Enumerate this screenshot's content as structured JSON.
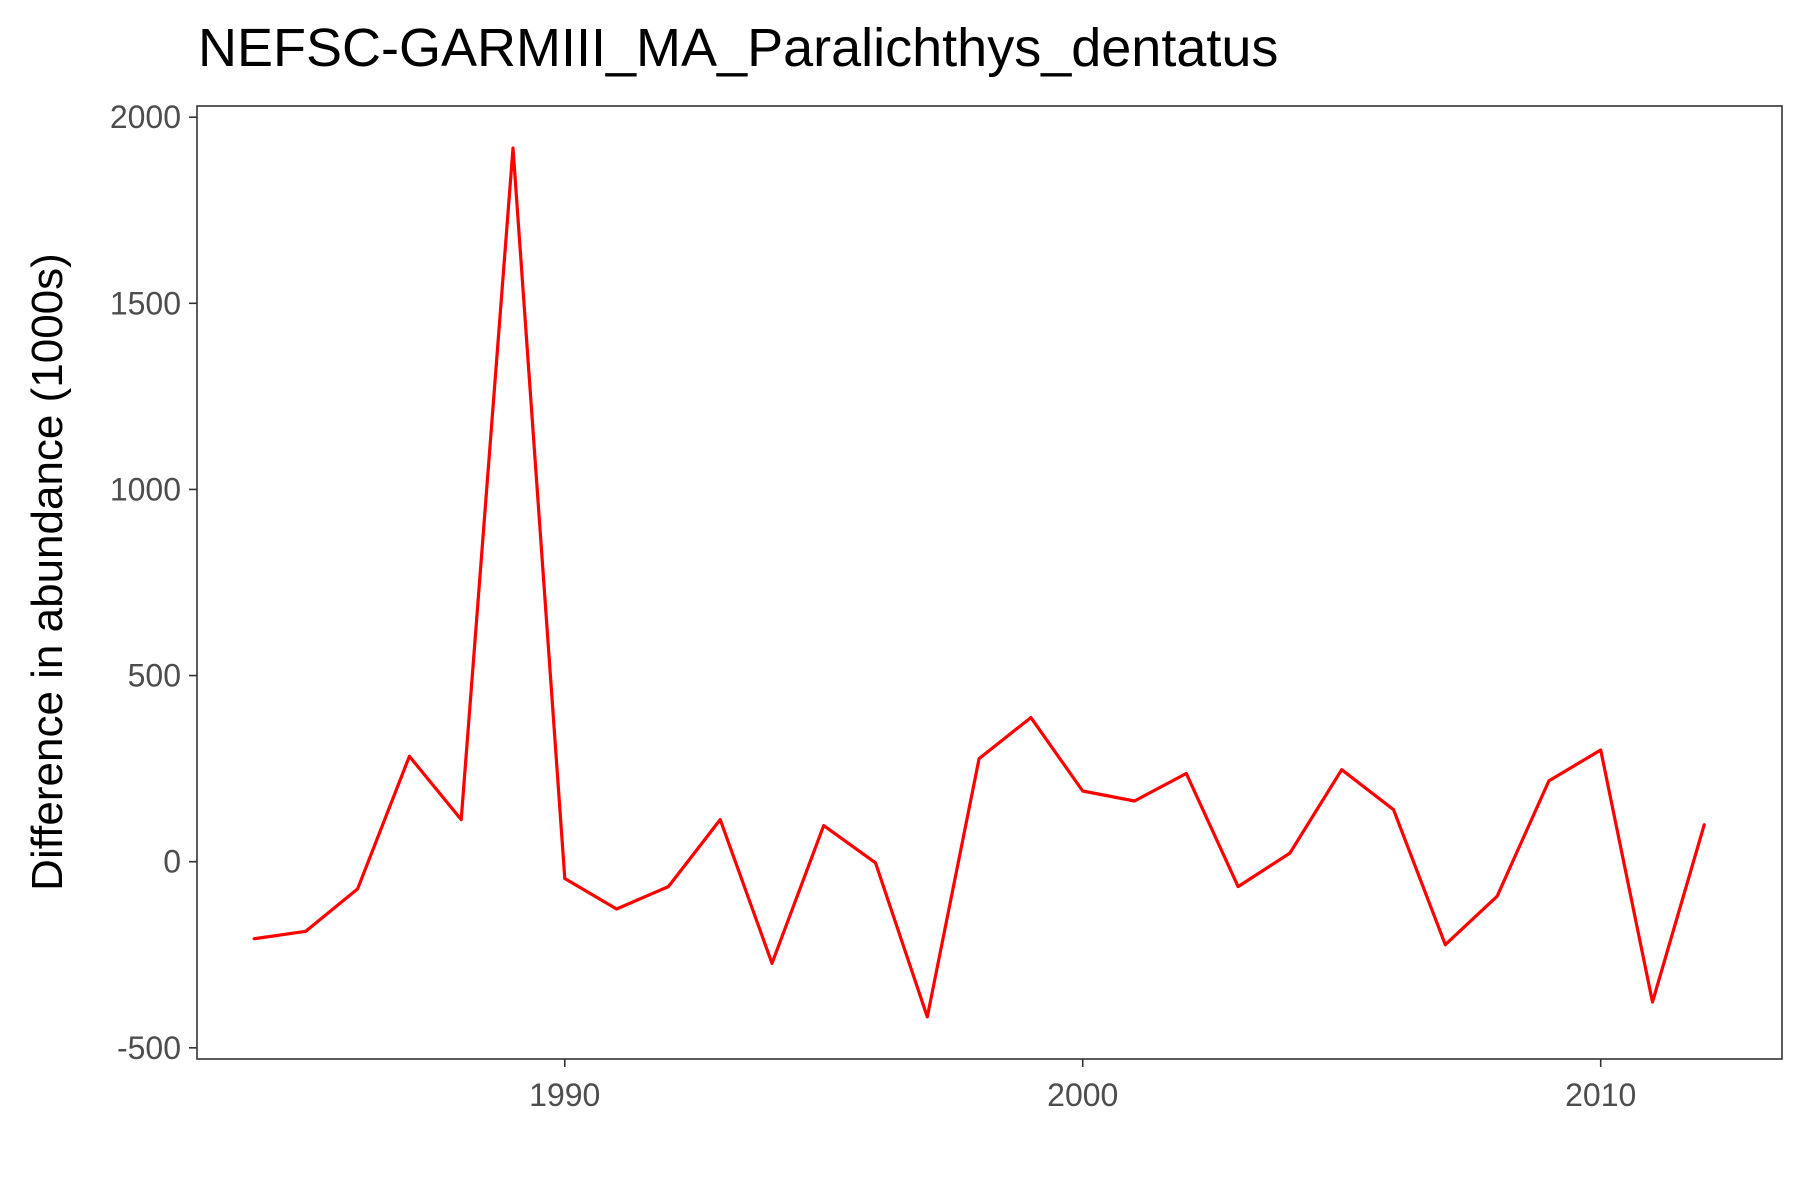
{
  "chart_data": {
    "type": "line",
    "title": "NEFSC-GARMIII_MA_Paralichthys_dentatus",
    "xlabel": "",
    "ylabel": "Difference in abundance (1000s)",
    "xlim": [
      1982.9,
      2013.5
    ],
    "ylim": [
      -530,
      2030
    ],
    "x_ticks": [
      1990,
      2000,
      2010
    ],
    "x_tick_labels": [
      "1990",
      "2000",
      "2010"
    ],
    "y_ticks": [
      -500,
      0,
      500,
      1000,
      1500,
      2000
    ],
    "y_tick_labels": [
      "-500",
      "0",
      "500",
      "1000",
      "1500",
      "2000"
    ],
    "grid": false,
    "legend": "none",
    "series": [
      {
        "color": "#ff0000",
        "x": [
          1984,
          1985,
          1986,
          1987,
          1988,
          1989,
          1990,
          1991,
          1992,
          1993,
          1994,
          1995,
          1996,
          1997,
          1998,
          1999,
          2000,
          2001,
          2002,
          2003,
          2004,
          2005,
          2006,
          2007,
          2008,
          2009,
          2010,
          2011,
          2012
        ],
        "y": [
          -207,
          -187,
          -73,
          283,
          113,
          1917,
          -45,
          -127,
          -67,
          113,
          -273,
          97,
          -3,
          -417,
          277,
          387,
          190,
          163,
          237,
          -67,
          23,
          247,
          140,
          -223,
          -93,
          217,
          300,
          -377,
          100
        ]
      }
    ]
  }
}
